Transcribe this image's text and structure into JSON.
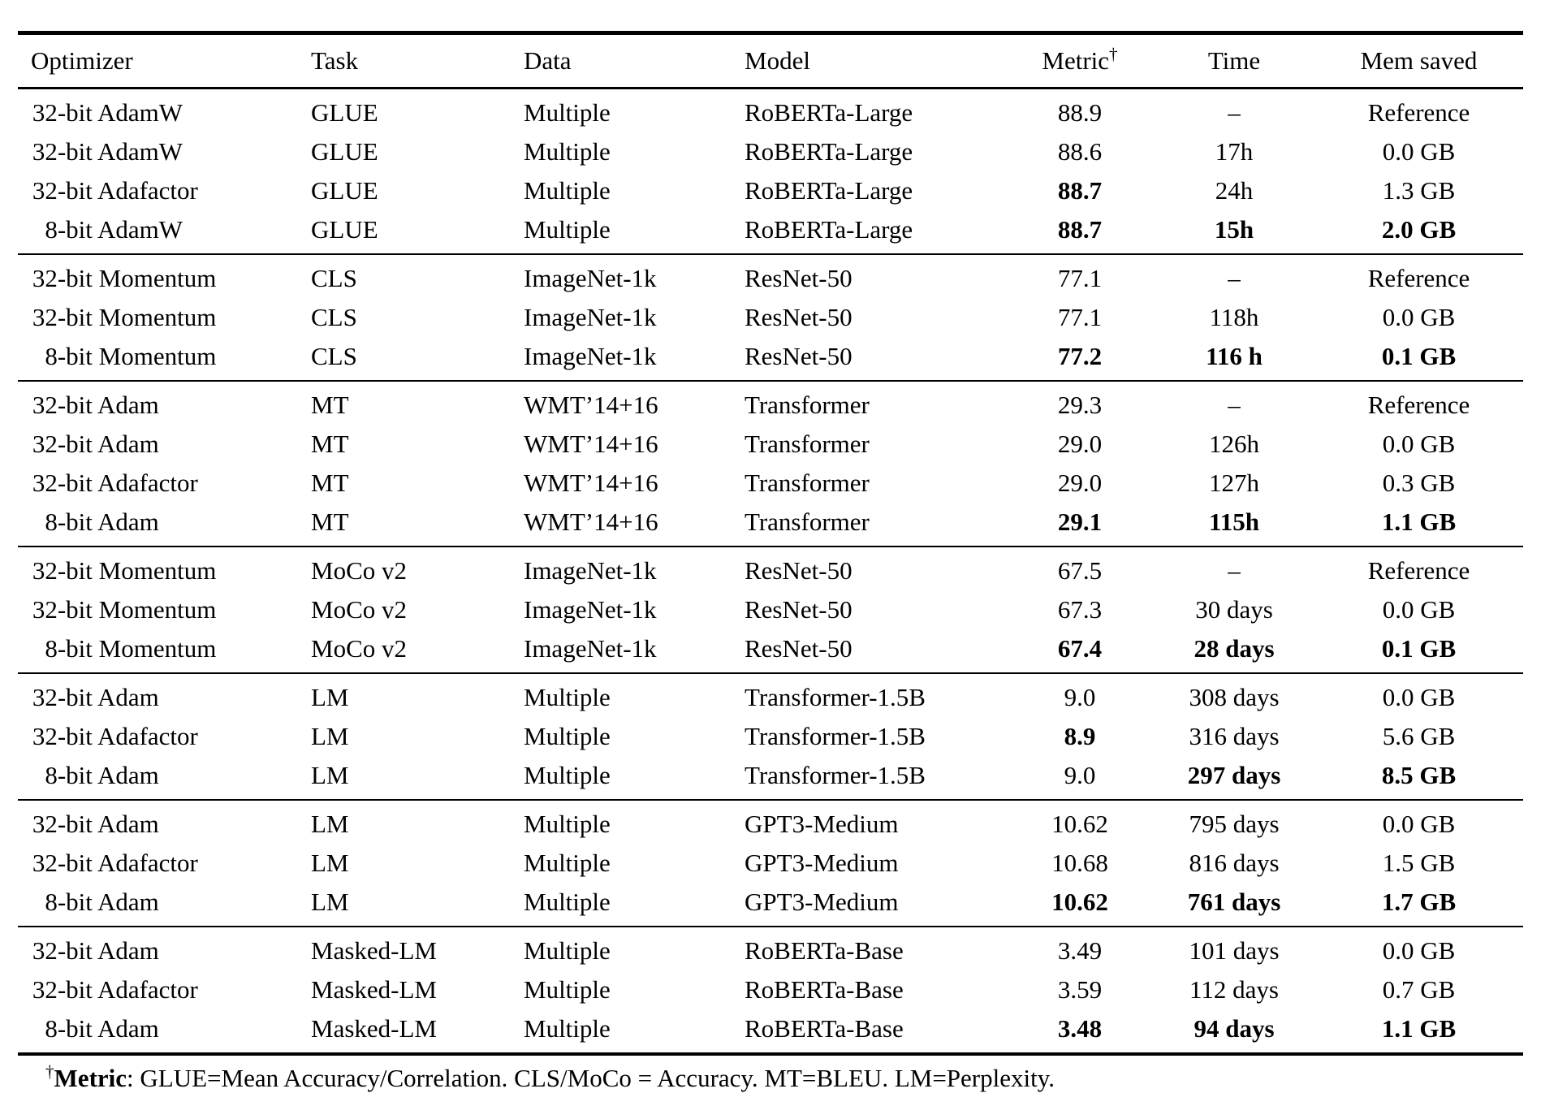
{
  "header": {
    "optimizer": "Optimizer",
    "task": "Task",
    "data": "Data",
    "model": "Model",
    "metric": "Metric",
    "metric_sup": "†",
    "time": "Time",
    "mem": "Mem saved"
  },
  "groups": [
    {
      "name": "glue-roberta-large",
      "rows": [
        {
          "optimizer": "32-bit AdamW",
          "task": "GLUE",
          "data": "Multiple",
          "model": "RoBERTa-Large",
          "metric": "88.9",
          "time": "–",
          "mem": "Reference",
          "bold": []
        },
        {
          "optimizer": "32-bit AdamW",
          "task": "GLUE",
          "data": "Multiple",
          "model": "RoBERTa-Large",
          "metric": "88.6",
          "time": "17h",
          "mem": "0.0 GB",
          "bold": []
        },
        {
          "optimizer": "32-bit Adafactor",
          "task": "GLUE",
          "data": "Multiple",
          "model": "RoBERTa-Large",
          "metric": "88.7",
          "time": "24h",
          "mem": "1.3 GB",
          "bold": [
            "metric"
          ]
        },
        {
          "optimizer": "8-bit AdamW",
          "task": "GLUE",
          "data": "Multiple",
          "model": "RoBERTa-Large",
          "metric": "88.7",
          "time": "15h",
          "mem": "2.0 GB",
          "bold": [
            "metric",
            "time",
            "mem"
          ]
        }
      ]
    },
    {
      "name": "cls-imagenet-resnet50",
      "rows": [
        {
          "optimizer": "32-bit Momentum",
          "task": "CLS",
          "data": "ImageNet-1k",
          "model": "ResNet-50",
          "metric": "77.1",
          "time": "–",
          "mem": "Reference",
          "bold": []
        },
        {
          "optimizer": "32-bit Momentum",
          "task": "CLS",
          "data": "ImageNet-1k",
          "model": "ResNet-50",
          "metric": "77.1",
          "time": "118h",
          "mem": "0.0 GB",
          "bold": []
        },
        {
          "optimizer": "8-bit Momentum",
          "task": "CLS",
          "data": "ImageNet-1k",
          "model": "ResNet-50",
          "metric": "77.2",
          "time": "116 h",
          "mem": "0.1 GB",
          "bold": [
            "metric",
            "time",
            "mem"
          ]
        }
      ]
    },
    {
      "name": "mt-wmt-transformer",
      "rows": [
        {
          "optimizer": "32-bit Adam",
          "task": "MT",
          "data": "WMT’14+16",
          "model": "Transformer",
          "metric": "29.3",
          "time": "–",
          "mem": "Reference",
          "bold": []
        },
        {
          "optimizer": "32-bit Adam",
          "task": "MT",
          "data": "WMT’14+16",
          "model": "Transformer",
          "metric": "29.0",
          "time": "126h",
          "mem": "0.0 GB",
          "bold": []
        },
        {
          "optimizer": "32-bit Adafactor",
          "task": "MT",
          "data": "WMT’14+16",
          "model": "Transformer",
          "metric": "29.0",
          "time": "127h",
          "mem": "0.3 GB",
          "bold": []
        },
        {
          "optimizer": "8-bit Adam",
          "task": "MT",
          "data": "WMT’14+16",
          "model": "Transformer",
          "metric": "29.1",
          "time": "115h",
          "mem": "1.1 GB",
          "bold": [
            "metric",
            "time",
            "mem"
          ]
        }
      ]
    },
    {
      "name": "moco-v2-imagenet-resnet50",
      "rows": [
        {
          "optimizer": "32-bit Momentum",
          "task": "MoCo v2",
          "data": "ImageNet-1k",
          "model": "ResNet-50",
          "metric": "67.5",
          "time": "–",
          "mem": "Reference",
          "bold": []
        },
        {
          "optimizer": "32-bit Momentum",
          "task": "MoCo v2",
          "data": "ImageNet-1k",
          "model": "ResNet-50",
          "metric": "67.3",
          "time": "30 days",
          "mem": "0.0 GB",
          "bold": []
        },
        {
          "optimizer": "8-bit Momentum",
          "task": "MoCo v2",
          "data": "ImageNet-1k",
          "model": "ResNet-50",
          "metric": "67.4",
          "time": "28 days",
          "mem": "0.1 GB",
          "bold": [
            "metric",
            "time",
            "mem"
          ]
        }
      ]
    },
    {
      "name": "lm-transformer-1-5b",
      "rows": [
        {
          "optimizer": "32-bit Adam",
          "task": "LM",
          "data": "Multiple",
          "model": "Transformer-1.5B",
          "metric": "9.0",
          "time": "308 days",
          "mem": "0.0 GB",
          "bold": []
        },
        {
          "optimizer": "32-bit Adafactor",
          "task": "LM",
          "data": "Multiple",
          "model": "Transformer-1.5B",
          "metric": "8.9",
          "time": "316 days",
          "mem": "5.6 GB",
          "bold": [
            "metric"
          ]
        },
        {
          "optimizer": "8-bit Adam",
          "task": "LM",
          "data": "Multiple",
          "model": "Transformer-1.5B",
          "metric": "9.0",
          "time": "297 days",
          "mem": "8.5 GB",
          "bold": [
            "time",
            "mem"
          ]
        }
      ]
    },
    {
      "name": "lm-gpt3-medium",
      "rows": [
        {
          "optimizer": "32-bit Adam",
          "task": "LM",
          "data": "Multiple",
          "model": "GPT3-Medium",
          "metric": "10.62",
          "time": "795 days",
          "mem": "0.0 GB",
          "bold": []
        },
        {
          "optimizer": "32-bit Adafactor",
          "task": "LM",
          "data": "Multiple",
          "model": "GPT3-Medium",
          "metric": "10.68",
          "time": "816 days",
          "mem": "1.5 GB",
          "bold": []
        },
        {
          "optimizer": "8-bit Adam",
          "task": "LM",
          "data": "Multiple",
          "model": "GPT3-Medium",
          "metric": "10.62",
          "time": "761 days",
          "mem": "1.7 GB",
          "bold": [
            "metric",
            "time",
            "mem"
          ]
        }
      ]
    },
    {
      "name": "masked-lm-roberta-base",
      "rows": [
        {
          "optimizer": "32-bit Adam",
          "task": "Masked-LM",
          "data": "Multiple",
          "model": "RoBERTa-Base",
          "metric": "3.49",
          "time": "101 days",
          "mem": "0.0 GB",
          "bold": []
        },
        {
          "optimizer": "32-bit Adafactor",
          "task": "Masked-LM",
          "data": "Multiple",
          "model": "RoBERTa-Base",
          "metric": "3.59",
          "time": "112 days",
          "mem": "0.7 GB",
          "bold": []
        },
        {
          "optimizer": "8-bit Adam",
          "task": "Masked-LM",
          "data": "Multiple",
          "model": "RoBERTa-Base",
          "metric": "3.48",
          "time": "94 days",
          "mem": "1.1 GB",
          "bold": [
            "metric",
            "time",
            "mem"
          ]
        }
      ]
    }
  ],
  "footnote": {
    "sup": "†",
    "label": "Metric",
    "text": ": GLUE=Mean Accuracy/Correlation. CLS/MoCo = Accuracy. MT=BLEU. LM=Perplexity."
  },
  "colors": {
    "text": "#000000",
    "background": "#ffffff",
    "rule": "#000000"
  }
}
